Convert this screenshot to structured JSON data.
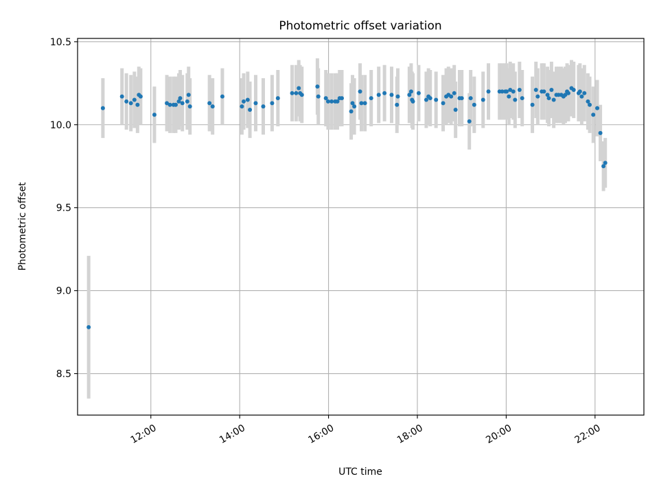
{
  "chart_data": {
    "type": "scatter",
    "title": "Photometric offset variation",
    "xlabel": "UTC time",
    "ylabel": "Photometric offset",
    "x_unit": "hours UTC",
    "xlim": [
      10.35,
      23.1
    ],
    "ylim": [
      8.25,
      10.52
    ],
    "x_ticks": [
      12,
      14,
      16,
      18,
      20,
      22
    ],
    "x_tick_labels": [
      "12:00",
      "14:00",
      "16:00",
      "18:00",
      "20:00",
      "22:00"
    ],
    "y_ticks": [
      8.5,
      9.0,
      9.5,
      10.0,
      10.5
    ],
    "y_tick_labels": [
      "8.5",
      "9.0",
      "9.5",
      "10.0",
      "10.5"
    ],
    "grid": true,
    "colors": {
      "points": "#1f77b4",
      "errorbars": "#d3d3d3",
      "grid": "#b0b0b0"
    },
    "series": [
      {
        "x": [
          10.6,
          10.92,
          11.35,
          11.45,
          11.55,
          11.63,
          11.7,
          11.73,
          11.77,
          12.08,
          12.36,
          12.43,
          12.51,
          12.56,
          12.63,
          12.66,
          12.71,
          12.82,
          12.85,
          12.88,
          13.32,
          13.39,
          13.61,
          14.05,
          14.09,
          14.18,
          14.23,
          14.36,
          14.53,
          14.73,
          14.86,
          15.18,
          15.27,
          15.33,
          15.36,
          15.4,
          15.75,
          15.77,
          15.94,
          15.99,
          16.07,
          16.15,
          16.2,
          16.25,
          16.3,
          16.51,
          16.54,
          16.58,
          16.71,
          16.74,
          16.82,
          16.96,
          17.13,
          17.26,
          17.42,
          17.54,
          17.56,
          17.82,
          17.86,
          17.88,
          17.9,
          18.03,
          18.2,
          18.25,
          18.29,
          18.42,
          18.58,
          18.65,
          18.7,
          18.76,
          18.83,
          18.86,
          18.95,
          19.0,
          19.17,
          19.2,
          19.28,
          19.48,
          19.6,
          19.85,
          19.91,
          19.98,
          20.01,
          20.06,
          20.09,
          20.16,
          20.2,
          20.3,
          20.36,
          20.59,
          20.67,
          20.71,
          20.8,
          20.85,
          20.93,
          20.96,
          21.02,
          21.07,
          21.13,
          21.18,
          21.24,
          21.29,
          21.33,
          21.37,
          21.4,
          21.47,
          21.52,
          21.63,
          21.66,
          21.7,
          21.76,
          21.84,
          21.88,
          21.96,
          22.05,
          22.12,
          22.19,
          22.23
        ],
        "y": [
          8.78,
          10.1,
          10.17,
          10.14,
          10.13,
          10.15,
          10.12,
          10.18,
          10.17,
          10.06,
          10.13,
          10.12,
          10.12,
          10.12,
          10.14,
          10.16,
          10.13,
          10.14,
          10.18,
          10.11,
          10.13,
          10.11,
          10.17,
          10.11,
          10.14,
          10.15,
          10.09,
          10.13,
          10.11,
          10.13,
          10.16,
          10.19,
          10.19,
          10.22,
          10.19,
          10.18,
          10.23,
          10.17,
          10.16,
          10.14,
          10.14,
          10.14,
          10.14,
          10.16,
          10.16,
          10.08,
          10.13,
          10.11,
          10.2,
          10.13,
          10.13,
          10.16,
          10.18,
          10.19,
          10.18,
          10.12,
          10.17,
          10.18,
          10.2,
          10.15,
          10.14,
          10.19,
          10.15,
          10.17,
          10.16,
          10.15,
          10.13,
          10.17,
          10.18,
          10.17,
          10.19,
          10.09,
          10.16,
          10.16,
          10.02,
          10.16,
          10.12,
          10.15,
          10.2,
          10.2,
          10.2,
          10.2,
          10.2,
          10.17,
          10.21,
          10.2,
          10.15,
          10.21,
          10.16,
          10.12,
          10.21,
          10.17,
          10.2,
          10.2,
          10.18,
          10.16,
          10.21,
          10.15,
          10.18,
          10.18,
          10.18,
          10.17,
          10.18,
          10.2,
          10.19,
          10.22,
          10.21,
          10.19,
          10.2,
          10.17,
          10.19,
          10.14,
          10.12,
          10.06,
          10.1,
          9.95,
          9.75,
          9.77
        ],
        "yerr": [
          0.43,
          0.18,
          0.17,
          0.17,
          0.17,
          0.17,
          0.17,
          0.17,
          0.17,
          0.17,
          0.17,
          0.17,
          0.17,
          0.17,
          0.17,
          0.17,
          0.17,
          0.17,
          0.17,
          0.17,
          0.17,
          0.17,
          0.17,
          0.17,
          0.17,
          0.17,
          0.17,
          0.17,
          0.17,
          0.17,
          0.17,
          0.17,
          0.17,
          0.17,
          0.17,
          0.17,
          0.17,
          0.17,
          0.17,
          0.17,
          0.17,
          0.17,
          0.17,
          0.17,
          0.17,
          0.17,
          0.17,
          0.17,
          0.17,
          0.17,
          0.17,
          0.17,
          0.17,
          0.17,
          0.17,
          0.17,
          0.17,
          0.17,
          0.17,
          0.17,
          0.17,
          0.17,
          0.17,
          0.17,
          0.17,
          0.17,
          0.17,
          0.17,
          0.17,
          0.17,
          0.17,
          0.17,
          0.17,
          0.17,
          0.17,
          0.17,
          0.17,
          0.17,
          0.17,
          0.17,
          0.17,
          0.17,
          0.17,
          0.17,
          0.17,
          0.17,
          0.17,
          0.17,
          0.17,
          0.17,
          0.17,
          0.17,
          0.17,
          0.17,
          0.17,
          0.17,
          0.17,
          0.17,
          0.17,
          0.17,
          0.17,
          0.17,
          0.17,
          0.17,
          0.17,
          0.17,
          0.17,
          0.17,
          0.17,
          0.17,
          0.17,
          0.17,
          0.17,
          0.17,
          0.17,
          0.17,
          0.15,
          0.15
        ]
      }
    ]
  }
}
